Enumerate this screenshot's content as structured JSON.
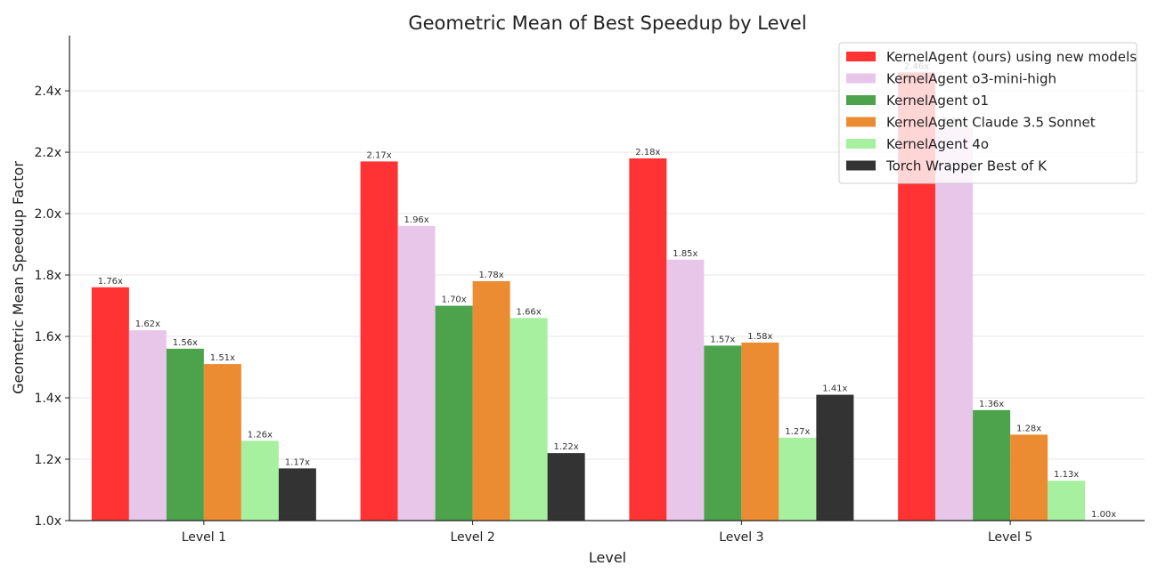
{
  "chart_data": {
    "type": "bar",
    "title": "Geometric Mean of Best Speedup by Level",
    "xlabel": "Level",
    "ylabel": "Geometric Mean Speedup Factor",
    "categories": [
      "Level 1",
      "Level 2",
      "Level 3",
      "Level 5"
    ],
    "ylim": [
      1.0,
      2.58
    ],
    "yticks": [
      1.0,
      1.2,
      1.4,
      1.6,
      1.8,
      2.0,
      2.2,
      2.4
    ],
    "ytick_labels": [
      "1.0x",
      "1.2x",
      "1.4x",
      "1.6x",
      "1.8x",
      "2.0x",
      "2.2x",
      "2.4x"
    ],
    "grid": "horizontal",
    "legend_position": "top-right",
    "series": [
      {
        "name": "KernelAgent (ours) using new models",
        "color": "#ff3333",
        "values": [
          1.76,
          2.17,
          2.18,
          2.46
        ],
        "labels": [
          "1.76x",
          "2.17x",
          "2.18x",
          "2.46x"
        ]
      },
      {
        "name": "KernelAgent o3-mini-high",
        "color": "#e8c6ea",
        "values": [
          1.62,
          1.96,
          1.85,
          2.28
        ],
        "labels": [
          "1.62x",
          "1.96x",
          "1.85x",
          "2.28x"
        ]
      },
      {
        "name": "KernelAgent o1",
        "color": "#4ca34c",
        "values": [
          1.56,
          1.7,
          1.57,
          1.36
        ],
        "labels": [
          "1.56x",
          "1.70x",
          "1.57x",
          "1.36x"
        ]
      },
      {
        "name": "KernelAgent Claude 3.5 Sonnet",
        "color": "#eb8c33",
        "values": [
          1.51,
          1.78,
          1.58,
          1.28
        ],
        "labels": [
          "1.51x",
          "1.78x",
          "1.58x",
          "1.28x"
        ]
      },
      {
        "name": "KernelAgent 4o",
        "color": "#a6f0a0",
        "values": [
          1.26,
          1.66,
          1.27,
          1.13
        ],
        "labels": [
          "1.26x",
          "1.66x",
          "1.27x",
          "1.13x"
        ]
      },
      {
        "name": "Torch Wrapper Best of K",
        "color": "#333333",
        "values": [
          1.17,
          1.22,
          1.41,
          1.0
        ],
        "labels": [
          "1.17x",
          "1.22x",
          "1.41x",
          "1.00x"
        ]
      }
    ]
  }
}
